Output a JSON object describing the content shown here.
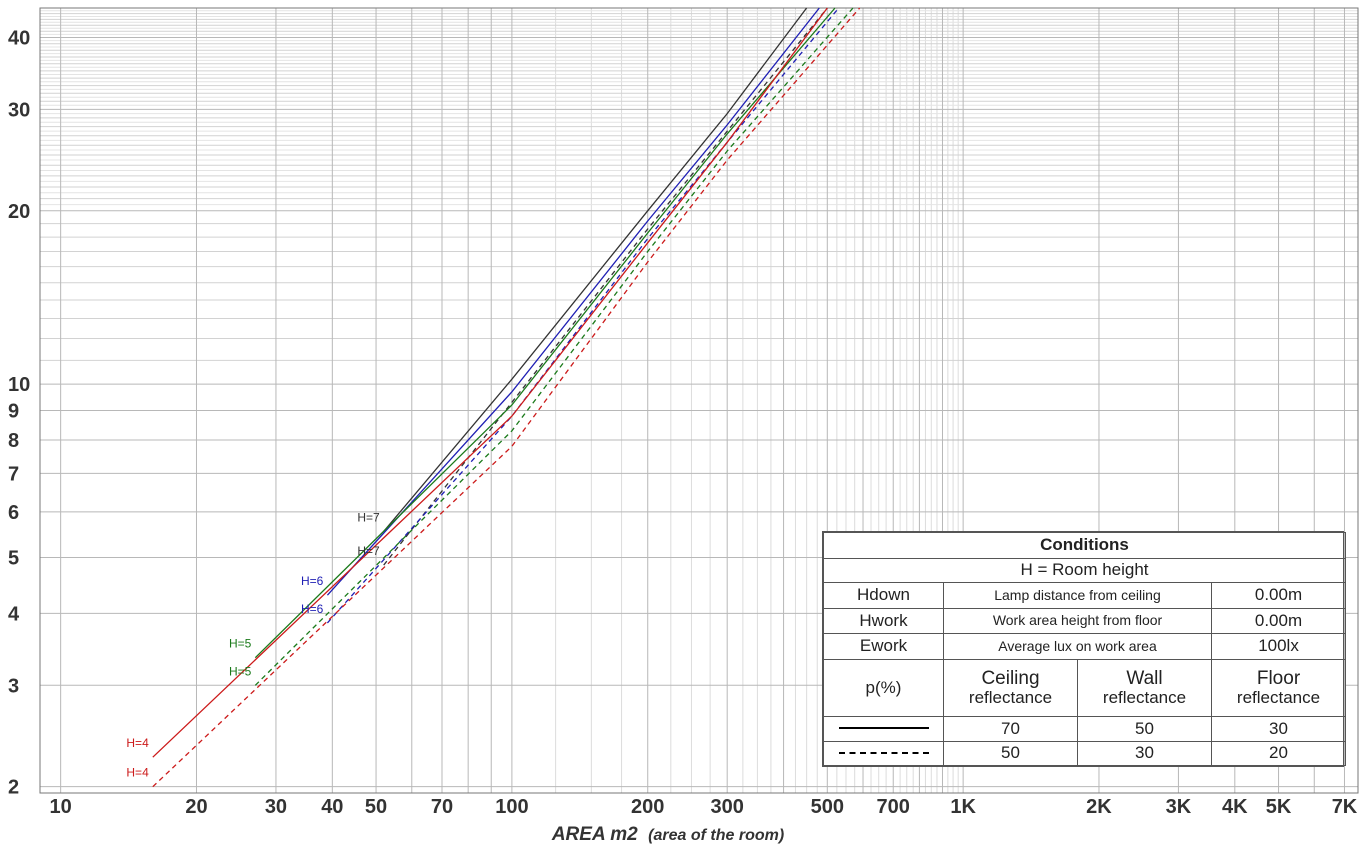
{
  "chart_data": {
    "type": "line",
    "x_scale": "log",
    "y_scale": "log",
    "xlabel": "AREA m2",
    "xlabel_sub": "(area of the room)",
    "ylabel": "",
    "xlim": [
      9,
      7500
    ],
    "ylim": [
      1.95,
      45
    ],
    "x_ticks": [
      {
        "v": 10,
        "label": "10"
      },
      {
        "v": 20,
        "label": "20"
      },
      {
        "v": 30,
        "label": "30"
      },
      {
        "v": 40,
        "label": "40"
      },
      {
        "v": 50,
        "label": "50"
      },
      {
        "v": 70,
        "label": "70"
      },
      {
        "v": 100,
        "label": "100"
      },
      {
        "v": 200,
        "label": "200"
      },
      {
        "v": 300,
        "label": "300"
      },
      {
        "v": 500,
        "label": "500"
      },
      {
        "v": 700,
        "label": "700"
      },
      {
        "v": 1000,
        "label": "1K"
      },
      {
        "v": 2000,
        "label": "2K"
      },
      {
        "v": 3000,
        "label": "3K"
      },
      {
        "v": 4000,
        "label": "4K"
      },
      {
        "v": 5000,
        "label": "5K"
      },
      {
        "v": 7000,
        "label": "7K"
      }
    ],
    "y_ticks": [
      {
        "v": 2,
        "label": "2"
      },
      {
        "v": 3,
        "label": "3"
      },
      {
        "v": 4,
        "label": "4"
      },
      {
        "v": 5,
        "label": "5"
      },
      {
        "v": 6,
        "label": "6"
      },
      {
        "v": 7,
        "label": "7"
      },
      {
        "v": 8,
        "label": "8"
      },
      {
        "v": 9,
        "label": "9"
      },
      {
        "v": 10,
        "label": "10"
      },
      {
        "v": 20,
        "label": "20"
      },
      {
        "v": 30,
        "label": "30"
      },
      {
        "v": 40,
        "label": "40"
      }
    ],
    "grid": true,
    "series": [
      {
        "name": "H=7",
        "style": "solid",
        "color": "#333333",
        "x": [
          52,
          100,
          200,
          300,
          450
        ],
        "y": [
          5.55,
          10.2,
          20,
          29.5,
          45
        ]
      },
      {
        "name": "H=7",
        "style": "dashed",
        "color": "#333333",
        "x": [
          52,
          100,
          200,
          300,
          500
        ],
        "y": [
          4.85,
          9.3,
          18.6,
          27.5,
          45
        ]
      },
      {
        "name": "H=6",
        "style": "solid",
        "color": "#1f1fb4",
        "x": [
          39,
          100,
          200,
          300,
          480
        ],
        "y": [
          4.3,
          9.7,
          19.2,
          28.2,
          45
        ]
      },
      {
        "name": "H=6",
        "style": "dashed",
        "color": "#1f1fb4",
        "x": [
          39,
          100,
          200,
          300,
          530
        ],
        "y": [
          3.85,
          8.8,
          17.9,
          26.3,
          45
        ]
      },
      {
        "name": "H=5",
        "style": "solid",
        "color": "#1a7a1a",
        "x": [
          27,
          100,
          200,
          300,
          520
        ],
        "y": [
          3.35,
          9.2,
          18.3,
          27.2,
          45
        ]
      },
      {
        "name": "H=5",
        "style": "dashed",
        "color": "#1a7a1a",
        "x": [
          27,
          100,
          200,
          300,
          570
        ],
        "y": [
          3.0,
          8.3,
          17,
          25.4,
          45
        ]
      },
      {
        "name": "H=4",
        "style": "solid",
        "color": "#cc1a1a",
        "x": [
          16,
          100,
          200,
          300,
          500
        ],
        "y": [
          2.25,
          8.8,
          17.6,
          26.3,
          45
        ]
      },
      {
        "name": "H=4",
        "style": "dashed",
        "color": "#cc1a1a",
        "x": [
          16,
          100,
          200,
          300,
          590
        ],
        "y": [
          2.0,
          7.8,
          16.3,
          24.5,
          45
        ]
      }
    ]
  },
  "conditions": {
    "title": "Conditions",
    "subtitle": "H = Room height",
    "rows": [
      {
        "name": "Hdown",
        "desc": "Lamp distance from ceiling",
        "value": "0.00m"
      },
      {
        "name": "Hwork",
        "desc": "Work area height from floor",
        "value": "0.00m"
      },
      {
        "name": "Ework",
        "desc": "Average lux on work area",
        "value": "100lx"
      }
    ],
    "p_label": "p(%)",
    "headers": [
      {
        "top": "Ceiling",
        "bottom": "reflectance"
      },
      {
        "top": "Wall",
        "bottom": "reflectance"
      },
      {
        "top": "Floor",
        "bottom": "reflectance"
      }
    ],
    "solid_values": [
      "70",
      "50",
      "30"
    ],
    "dashed_values": [
      "50",
      "30",
      "20"
    ]
  }
}
